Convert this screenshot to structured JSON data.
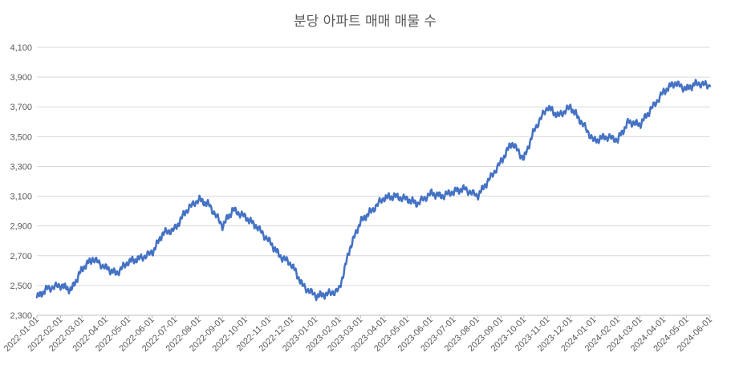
{
  "chart_data": {
    "type": "line",
    "title": "분당 아파트 매매 매물 수",
    "xlabel": "",
    "ylabel": "",
    "ylim": [
      2300,
      4100
    ],
    "yticks": [
      "2,300",
      "2,500",
      "2,700",
      "2,900",
      "3,100",
      "3,300",
      "3,500",
      "3,700",
      "3,900",
      "4,100"
    ],
    "grid": true,
    "legend": "none",
    "color": "#4472c4",
    "xticks": [
      "2022-01-01",
      "2022-02-01",
      "2022-03-01",
      "2022-04-01",
      "2022-05-01",
      "2022-06-01",
      "2022-07-01",
      "2022-08-01",
      "2022-09-01",
      "2022-10-01",
      "2022-11-01",
      "2022-12-01",
      "2023-01-01",
      "2023-02-01",
      "2023-03-01",
      "2023-04-01",
      "2023-05-01",
      "2023-06-01",
      "2023-07-01",
      "2023-08-01",
      "2023-09-01",
      "2023-10-01",
      "2023-11-01",
      "2023-12-01",
      "2024-01-01",
      "2024-02-01",
      "2024-03-01",
      "2024-04-01",
      "2024-05-01",
      "2024-06-01"
    ],
    "series": [
      {
        "x": [
          "2022-01-01",
          "2022-01-15",
          "2022-02-01",
          "2022-02-15",
          "2022-03-01",
          "2022-03-15",
          "2022-04-01",
          "2022-04-15",
          "2022-05-01",
          "2022-05-15",
          "2022-06-01",
          "2022-06-15",
          "2022-07-01",
          "2022-07-15",
          "2022-08-01",
          "2022-08-15",
          "2022-09-01",
          "2022-09-15",
          "2022-10-01",
          "2022-10-15",
          "2022-11-01",
          "2022-11-15",
          "2022-12-01",
          "2022-12-15",
          "2023-01-01",
          "2023-01-15",
          "2023-02-01",
          "2023-02-15",
          "2023-03-01",
          "2023-03-15",
          "2023-04-01",
          "2023-04-15",
          "2023-05-01",
          "2023-05-15",
          "2023-06-01",
          "2023-06-15",
          "2023-07-01",
          "2023-07-15",
          "2023-08-01",
          "2023-08-15",
          "2023-09-01",
          "2023-09-15",
          "2023-10-01",
          "2023-10-15",
          "2023-11-01",
          "2023-11-15",
          "2023-12-01",
          "2023-12-15",
          "2024-01-01",
          "2024-01-15",
          "2024-02-01",
          "2024-02-15",
          "2024-03-01",
          "2024-03-15",
          "2024-04-01",
          "2024-04-15",
          "2024-05-01",
          "2024-05-15",
          "2024-06-01"
        ],
        "values": [
          2420,
          2480,
          2500,
          2470,
          2610,
          2680,
          2620,
          2580,
          2660,
          2680,
          2720,
          2850,
          2880,
          3000,
          3080,
          3040,
          2900,
          3010,
          2960,
          2900,
          2800,
          2700,
          2640,
          2500,
          2430,
          2440,
          2470,
          2750,
          2930,
          3000,
          3090,
          3100,
          3080,
          3050,
          3120,
          3100,
          3130,
          3150,
          3100,
          3200,
          3330,
          3460,
          3350,
          3550,
          3700,
          3640,
          3700,
          3600,
          3470,
          3500,
          3480,
          3600,
          3580,
          3680,
          3800,
          3860,
          3820,
          3860,
          3840
        ]
      }
    ]
  }
}
